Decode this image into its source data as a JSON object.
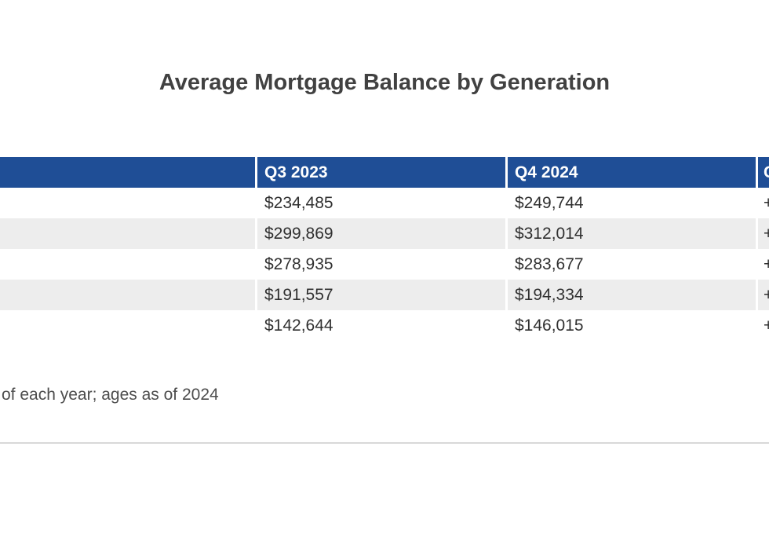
{
  "title": "Average Mortgage Balance by Generation",
  "table": {
    "headers": [
      "",
      "Q3 2023",
      "Q4 2024",
      "C"
    ],
    "rows": [
      {
        "cells": [
          "",
          "$234,485",
          "$249,744",
          "+"
        ]
      },
      {
        "cells": [
          "",
          "$299,869",
          "$312,014",
          "+"
        ]
      },
      {
        "cells": [
          "",
          "$278,935",
          "$283,677",
          "+"
        ]
      },
      {
        "cells": [
          "",
          "$191,557",
          "$194,334",
          "+"
        ]
      },
      {
        "cells": [
          "",
          "$142,644",
          "$146,015",
          "+"
        ]
      }
    ]
  },
  "footnote": "of each year; ages as of 2024",
  "colors": {
    "header_bg": "#1f4e96",
    "header_text": "#ffffff",
    "row_alt_bg": "#ededed",
    "row_bg": "#ffffff",
    "title_text": "#414141",
    "cell_text": "#303030",
    "footnote_text": "#4d4d4d",
    "divider": "#d8d8d8"
  },
  "chart_data": {
    "type": "table",
    "title": "Average Mortgage Balance by Generation",
    "columns": [
      "Q3 2023",
      "Q4 2024"
    ],
    "rows": [
      [
        234485,
        249744
      ],
      [
        299869,
        312014
      ],
      [
        278935,
        283677
      ],
      [
        191557,
        194334
      ],
      [
        142644,
        146015
      ]
    ],
    "footnote_visible": "of each year; ages as of 2024",
    "layout_note": "Left row-label column and right change column are cropped at the viewport edges; only a partial 'C' header and '+' value prefixes are visible."
  }
}
